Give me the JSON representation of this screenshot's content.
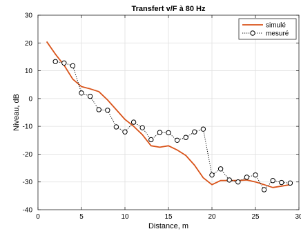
{
  "chart_data": {
    "type": "line",
    "title": "Transfert v/F à 80 Hz",
    "xlabel": "Distance, m",
    "ylabel": "Niveau, dB",
    "xlim": [
      0,
      30
    ],
    "ylim": [
      -40,
      30
    ],
    "xticks": [
      0,
      5,
      10,
      15,
      20,
      25,
      30
    ],
    "yticks": [
      -40,
      -30,
      -20,
      -10,
      0,
      10,
      20,
      30
    ],
    "grid": true,
    "legend_position": "top-right",
    "series": [
      {
        "name": "simulé",
        "color": "#d95319",
        "style": "solid",
        "marker": "none",
        "x": [
          1,
          2,
          3,
          4,
          5,
          6,
          7,
          8,
          9,
          10,
          11,
          12,
          13,
          14,
          15,
          16,
          17,
          18,
          19,
          20,
          21,
          22,
          23,
          24,
          25,
          26,
          27,
          28,
          29
        ],
        "y": [
          20.5,
          16,
          12,
          7,
          4.3,
          3.5,
          2.5,
          -0.5,
          -4,
          -7.5,
          -10,
          -13,
          -17,
          -17.5,
          -17,
          -18.5,
          -20.5,
          -24,
          -28.5,
          -31,
          -29.5,
          -29.5,
          -29.5,
          -29.3,
          -30,
          -31,
          -32,
          -31.5,
          -31
        ]
      },
      {
        "name": "mesuré",
        "color": "#000000",
        "style": "dotted",
        "marker": "circle",
        "x": [
          2,
          3,
          4,
          5,
          6,
          7,
          8,
          9,
          10,
          11,
          12,
          13,
          14,
          15,
          16,
          17,
          18,
          19,
          20,
          21,
          22,
          23,
          24,
          25,
          26,
          27,
          28,
          29
        ],
        "y": [
          13.3,
          12.8,
          11.8,
          2,
          0.8,
          -4,
          -4.2,
          -10.2,
          -12,
          -8.5,
          -10.5,
          -14.8,
          -12.2,
          -12.3,
          -15,
          -14,
          -12,
          -11,
          -27.5,
          -25.3,
          -29.3,
          -30,
          -28.3,
          -27.5,
          -32.8,
          -29.5,
          -30.2,
          -30.4
        ]
      }
    ]
  }
}
